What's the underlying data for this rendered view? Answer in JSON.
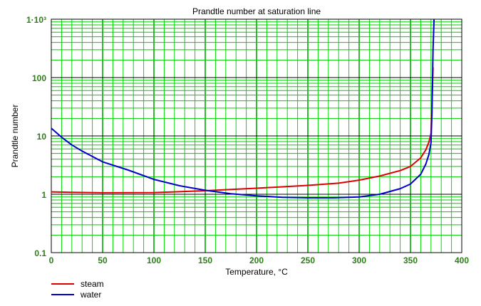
{
  "chart_data": {
    "type": "line",
    "title": "Prandtle number at saturation line",
    "xlabel": "Temperature, °C",
    "ylabel": "Prandtle number",
    "xlim": [
      0,
      400
    ],
    "ylim": [
      0.1,
      1000
    ],
    "yscale": "log",
    "grid": true,
    "legend_position": "bottom-left",
    "x_ticks": [
      "0",
      "50",
      "100",
      "150",
      "200",
      "250",
      "300",
      "350",
      "400"
    ],
    "x_tick_values": [
      0,
      50,
      100,
      150,
      200,
      250,
      300,
      350,
      400
    ],
    "y_ticks": [
      "0.1",
      "1",
      "10",
      "100",
      "1·10³"
    ],
    "y_tick_values": [
      0.1,
      1,
      10,
      100,
      1000
    ],
    "colors": {
      "steam": "#dd0000",
      "water": "#0000cc",
      "minor_grid": "#00cc00",
      "major_grid": "#000000",
      "tick_text": "#2e7d1a"
    },
    "series": [
      {
        "name": "steam",
        "x": [
          0,
          20,
          50,
          100,
          150,
          200,
          250,
          280,
          300,
          320,
          340,
          350,
          360,
          365,
          368,
          370,
          371,
          372
        ],
        "y": [
          1.1,
          1.08,
          1.06,
          1.07,
          1.15,
          1.27,
          1.42,
          1.55,
          1.75,
          2.05,
          2.55,
          3.0,
          4.2,
          5.8,
          7.8,
          11,
          35,
          150
        ]
      },
      {
        "name": "water",
        "x": [
          0,
          10,
          20,
          30,
          50,
          75,
          100,
          125,
          150,
          175,
          200,
          225,
          250,
          275,
          300,
          320,
          340,
          350,
          360,
          365,
          368,
          370,
          371,
          372,
          373
        ],
        "y": [
          13.5,
          9.5,
          7.0,
          5.5,
          3.6,
          2.6,
          1.8,
          1.4,
          1.17,
          1.02,
          0.94,
          0.89,
          0.87,
          0.87,
          0.9,
          1.0,
          1.25,
          1.5,
          2.2,
          3.3,
          4.8,
          7.5,
          25,
          300,
          1000
        ]
      }
    ]
  }
}
